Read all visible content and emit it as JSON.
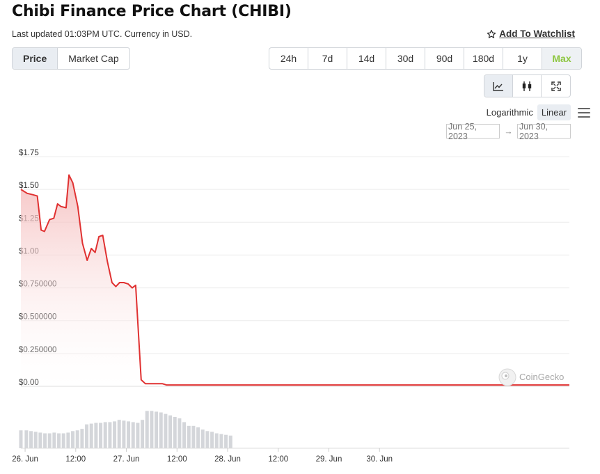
{
  "header": {
    "title": "Chibi Finance Price Chart (CHIBI)",
    "subtitle": "Last updated 01:03PM UTC. Currency in USD.",
    "watchlist_label": "Add To Watchlist"
  },
  "metric_tabs": [
    {
      "label": "Price",
      "active": true
    },
    {
      "label": "Market Cap",
      "active": false
    }
  ],
  "range_tabs": [
    "24h",
    "7d",
    "14d",
    "30d",
    "90d",
    "180d",
    "1y",
    "Max"
  ],
  "active_range": "Max",
  "chart_type_buttons": [
    "line-chart-icon",
    "candlestick-icon",
    "fullscreen-icon"
  ],
  "scale": {
    "log_label": "Logarithmic",
    "linear_label": "Linear",
    "active": "Linear"
  },
  "date_range": {
    "from": "Jun 25, 2023",
    "to": "Jun 30, 2023"
  },
  "watermark": "CoinGecko",
  "colors": {
    "line": "#e03131",
    "fill_top": "#f7c9c9",
    "volume": "#d4d6da",
    "active_range": "#8dc63f"
  },
  "chart_data": {
    "type": "area",
    "title": "",
    "xlabel": "",
    "ylabel": "",
    "y_ticks": [
      {
        "value": 1.75,
        "label": "$1.75"
      },
      {
        "value": 1.5,
        "label": "$1.50"
      },
      {
        "value": 1.25,
        "label": "$1.25"
      },
      {
        "value": 1.0,
        "label": "$1.00"
      },
      {
        "value": 0.75,
        "label": "$0.750000"
      },
      {
        "value": 0.5,
        "label": "$0.500000"
      },
      {
        "value": 0.25,
        "label": "$0.250000"
      },
      {
        "value": 0.0,
        "label": "$0.00"
      }
    ],
    "ylim": [
      0,
      1.75
    ],
    "x_unit": "hours since Jun 26, 00:00",
    "xlim": [
      -1,
      129
    ],
    "x_ticks": [
      {
        "x": 0,
        "label": "26. Jun"
      },
      {
        "x": 12,
        "label": "12:00"
      },
      {
        "x": 24,
        "label": "27. Jun"
      },
      {
        "x": 36,
        "label": "12:00"
      },
      {
        "x": 48,
        "label": "28. Jun"
      },
      {
        "x": 60,
        "label": "12:00"
      },
      {
        "x": 72,
        "label": "29. Jun"
      },
      {
        "x": 84,
        "label": "30. Jun"
      }
    ],
    "series": [
      {
        "name": "Price",
        "points": [
          [
            -1,
            1.5
          ],
          [
            0.5,
            1.47
          ],
          [
            1.8,
            1.46
          ],
          [
            2.9,
            1.45
          ],
          [
            3.8,
            1.19
          ],
          [
            4.6,
            1.18
          ],
          [
            5.8,
            1.27
          ],
          [
            6.8,
            1.28
          ],
          [
            7.7,
            1.39
          ],
          [
            8.5,
            1.37
          ],
          [
            9.7,
            1.36
          ],
          [
            10.4,
            1.61
          ],
          [
            11.3,
            1.55
          ],
          [
            12.5,
            1.37
          ],
          [
            13.6,
            1.09
          ],
          [
            14.7,
            0.96
          ],
          [
            15.7,
            1.05
          ],
          [
            16.6,
            1.02
          ],
          [
            17.5,
            1.14
          ],
          [
            18.4,
            1.15
          ],
          [
            19.5,
            0.95
          ],
          [
            20.6,
            0.79
          ],
          [
            21.5,
            0.76
          ],
          [
            22.4,
            0.79
          ],
          [
            23.4,
            0.79
          ],
          [
            24.4,
            0.78
          ],
          [
            25.4,
            0.75
          ],
          [
            26.2,
            0.77
          ],
          [
            27.5,
            0.05
          ],
          [
            28.5,
            0.02
          ],
          [
            30.5,
            0.02
          ],
          [
            32.5,
            0.02
          ],
          [
            33.5,
            0.01
          ],
          [
            40,
            0.01
          ],
          [
            60,
            0.01
          ],
          [
            80,
            0.01
          ],
          [
            100,
            0.01
          ],
          [
            115,
            0.01
          ],
          [
            129,
            0.01
          ]
        ]
      },
      {
        "name": "Volume",
        "x": [
          -1,
          0.3,
          1.4,
          2.5,
          3.6,
          4.7,
          5.8,
          6.9,
          8.0,
          9.1,
          10.2,
          11.3,
          12.4,
          13.5,
          14.6,
          15.7,
          16.8,
          17.9,
          19.0,
          20.1,
          21.2,
          22.3,
          23.4,
          24.5,
          25.6,
          26.7,
          27.8,
          28.9,
          30.0,
          31.1,
          32.2,
          33.3,
          34.4,
          35.5,
          36.6,
          37.7,
          38.8,
          39.9,
          41.0,
          42.1,
          43.2,
          44.3,
          45.4,
          46.5,
          47.6,
          48.7
        ],
        "values": [
          24,
          24,
          23,
          22,
          21,
          20,
          20,
          21,
          20,
          20,
          21,
          23,
          24,
          26,
          32,
          33,
          34,
          34,
          35,
          35,
          36,
          38,
          37,
          36,
          35,
          34,
          38,
          50,
          50,
          49,
          48,
          46,
          44,
          42,
          40,
          35,
          30,
          30,
          28,
          25,
          23,
          22,
          20,
          19,
          18,
          17
        ]
      }
    ],
    "volume_ylim": [
      0,
      55
    ],
    "grid": true,
    "legend": "none"
  }
}
